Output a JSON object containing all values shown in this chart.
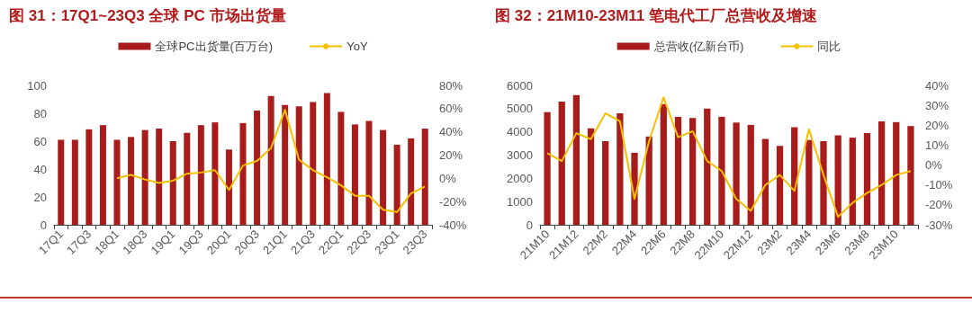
{
  "chart_data": [
    {
      "type": "bar",
      "title": "图 31：17Q1~23Q3 全球 PC 市场出货量",
      "categories": [
        "17Q1",
        null,
        "17Q3",
        null,
        "18Q1",
        null,
        "18Q3",
        null,
        "19Q1",
        null,
        "19Q3",
        null,
        "20Q1",
        null,
        "20Q3",
        null,
        "21Q1",
        null,
        "21Q3",
        null,
        "22Q1",
        null,
        "22Q3",
        null,
        "23Q1",
        null,
        "23Q3"
      ],
      "series": [
        {
          "name": "全球PC出货量(百万台)",
          "color": "#a81c1c",
          "values": [
            61,
            61,
            68.5,
            71.5,
            61,
            63,
            68,
            69,
            60,
            66,
            71.5,
            73.5,
            54,
            73,
            82,
            92.5,
            86,
            85,
            88,
            94.5,
            81,
            72,
            74.5,
            68,
            57.5,
            62,
            69
          ]
        },
        {
          "name": "YoY",
          "type": "line",
          "axis": "y2",
          "color": "#f5c000",
          "values": [
            null,
            null,
            null,
            null,
            0,
            3,
            -1,
            -4,
            -2,
            4,
            5,
            7,
            -10,
            11,
            15,
            26,
            59,
            16,
            7,
            1,
            -6,
            -15,
            -15,
            -27,
            -29,
            -13,
            -7
          ]
        }
      ],
      "ylim": [
        0,
        100
      ],
      "yticks": [
        0,
        20,
        40,
        60,
        80,
        100
      ],
      "y2lim": [
        -40,
        80
      ],
      "y2ticks": [
        {
          "value": -40,
          "label": "-40%"
        },
        {
          "value": -20,
          "label": "-20%"
        },
        {
          "value": 0,
          "label": "0%"
        },
        {
          "value": 20,
          "label": "20%"
        },
        {
          "value": 40,
          "label": "40%"
        },
        {
          "value": 60,
          "label": "60%"
        },
        {
          "value": 80,
          "label": "80%"
        }
      ],
      "grid": false,
      "legend": "top",
      "marker": "none"
    },
    {
      "type": "bar",
      "title": "图 32：21M10-23M11 笔电代工厂总营收及增速",
      "categories": [
        "21M10",
        null,
        "21M12",
        null,
        "22M2",
        null,
        "22M4",
        null,
        "22M6",
        null,
        "22M8",
        null,
        "22M10",
        null,
        "22M12",
        null,
        "23M2",
        null,
        "23M4",
        null,
        "23M6",
        null,
        "23M8",
        null,
        "23M10",
        null
      ],
      "series": [
        {
          "name": "总营收(亿新台币)",
          "color": "#a81c1c",
          "values": [
            4850,
            5300,
            5580,
            4150,
            3600,
            4800,
            3100,
            3800,
            5200,
            4650,
            4600,
            5000,
            4650,
            4400,
            4300,
            3700,
            3400,
            4200,
            3650,
            3600,
            3850,
            3750,
            3950,
            4450,
            4420,
            4250
          ]
        },
        {
          "name": "同比",
          "type": "line",
          "axis": "y2",
          "color": "#f5c000",
          "values": [
            6,
            2,
            16,
            13,
            26,
            22,
            -17,
            12,
            34,
            14,
            17,
            2,
            -3,
            -17,
            -23,
            -10,
            -5,
            -13,
            18,
            -5,
            -26,
            -19,
            -14,
            -10,
            -5,
            -3
          ]
        }
      ],
      "ylim": [
        0,
        6000
      ],
      "yticks": [
        0,
        1000,
        2000,
        3000,
        4000,
        5000,
        6000
      ],
      "y2lim": [
        -30,
        40
      ],
      "y2ticks": [
        {
          "value": -30,
          "label": "-30%"
        },
        {
          "value": -20,
          "label": "-20%"
        },
        {
          "value": -10,
          "label": "-10%"
        },
        {
          "value": 0,
          "label": "0%"
        },
        {
          "value": 10,
          "label": "10%"
        },
        {
          "value": 20,
          "label": "20%"
        },
        {
          "value": 30,
          "label": "30%"
        },
        {
          "value": 40,
          "label": "40%"
        }
      ],
      "grid": false,
      "legend": "top",
      "marker": "none"
    }
  ]
}
